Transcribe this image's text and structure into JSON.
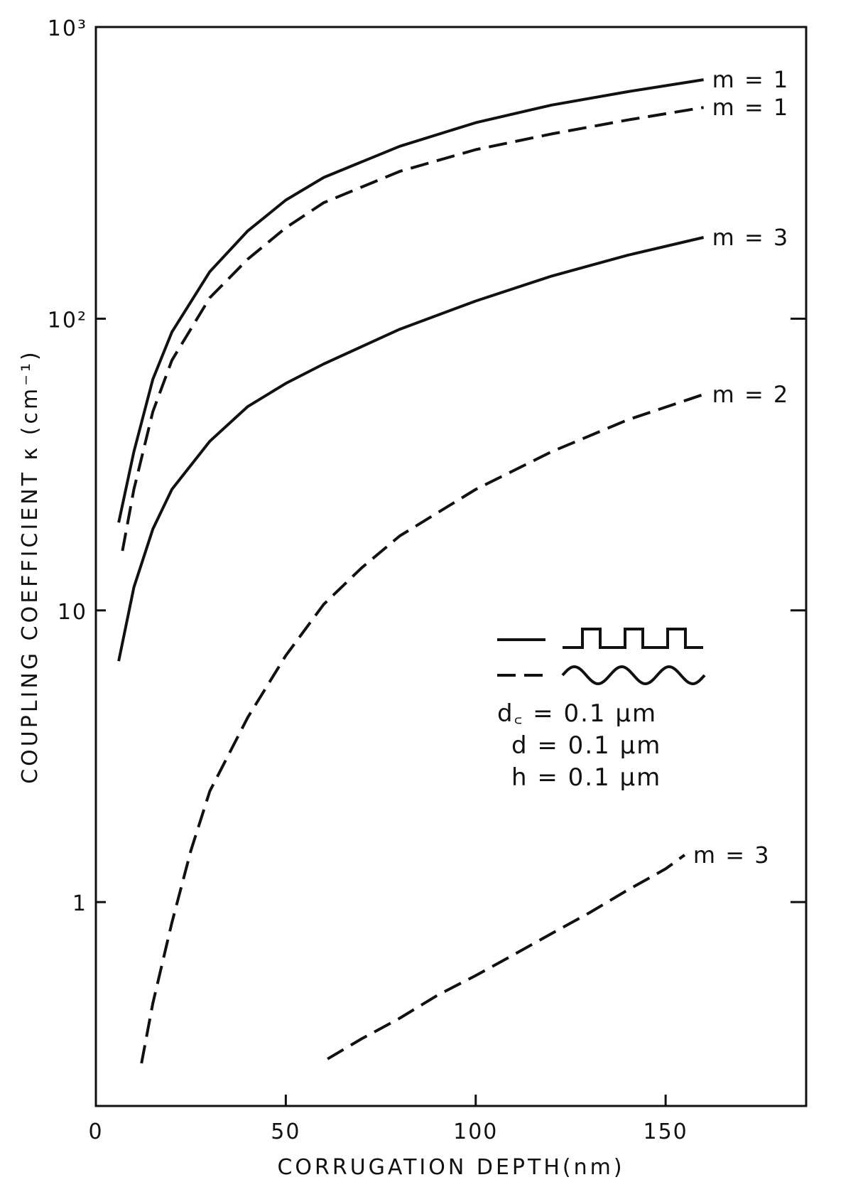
{
  "chart_data": {
    "type": "line",
    "title": "",
    "xlabel": "CORRUGATION DEPTH(nm)",
    "ylabel": "COUPLING COEFFICIENT κ (cm⁻¹)",
    "x_scale": "linear",
    "y_scale": "log",
    "xlim": [
      0,
      187
    ],
    "ylim": [
      0.2,
      1000
    ],
    "grid": false,
    "x_ticks": [
      {
        "value": 0,
        "label": "0"
      },
      {
        "value": 50,
        "label": "50"
      },
      {
        "value": 100,
        "label": "100"
      },
      {
        "value": 150,
        "label": "150"
      }
    ],
    "y_ticks": [
      {
        "value": 1,
        "label": "1"
      },
      {
        "value": 10,
        "label": "10"
      },
      {
        "value": 100,
        "label": "10²"
      },
      {
        "value": 1000,
        "label": "10³"
      }
    ],
    "series": [
      {
        "name": "m = 1",
        "style": "solid",
        "x": [
          6,
          10,
          15,
          20,
          30,
          40,
          50,
          60,
          80,
          100,
          120,
          140,
          160
        ],
        "y": [
          20,
          35,
          62,
          90,
          145,
          200,
          255,
          305,
          390,
          470,
          540,
          600,
          660
        ]
      },
      {
        "name": "m = 1",
        "style": "dashed",
        "x": [
          7,
          10,
          15,
          20,
          30,
          40,
          50,
          60,
          80,
          100,
          120,
          140,
          160
        ],
        "y": [
          16,
          26,
          48,
          72,
          118,
          160,
          205,
          250,
          320,
          380,
          430,
          480,
          530
        ]
      },
      {
        "name": "m = 3",
        "style": "solid",
        "x": [
          6,
          10,
          15,
          20,
          30,
          40,
          50,
          60,
          80,
          100,
          120,
          140,
          160
        ],
        "y": [
          6.7,
          12,
          19,
          26,
          38,
          50,
          60,
          70,
          92,
          115,
          140,
          165,
          190
        ]
      },
      {
        "name": "m = 2",
        "style": "dashed",
        "x": [
          12,
          15,
          20,
          25,
          30,
          40,
          50,
          60,
          70,
          80,
          100,
          120,
          140,
          160
        ],
        "y": [
          0.28,
          0.45,
          0.85,
          1.5,
          2.4,
          4.3,
          7,
          10.5,
          14,
          18,
          26,
          35,
          45,
          55
        ]
      },
      {
        "name": "m = 3",
        "style": "dashed",
        "x": [
          61,
          70,
          80,
          90,
          100,
          110,
          120,
          130,
          140,
          150,
          155
        ],
        "y": [
          0.29,
          0.34,
          0.4,
          0.48,
          0.56,
          0.66,
          0.78,
          0.92,
          1.1,
          1.3,
          1.45
        ]
      }
    ],
    "series_labels": [
      "m = 1",
      "m = 1",
      "m = 3",
      "m = 2",
      "m = 3"
    ],
    "legend": {
      "placement": "center-right",
      "entries": [
        {
          "line": "solid",
          "symbol": "rectangular grating"
        },
        {
          "line": "dashed",
          "symbol": "sinusoidal grating"
        }
      ],
      "parameters": [
        "d꜀ = 0.1 μm",
        "d = 0.1 μm",
        "h = 0.1 μm"
      ]
    }
  }
}
